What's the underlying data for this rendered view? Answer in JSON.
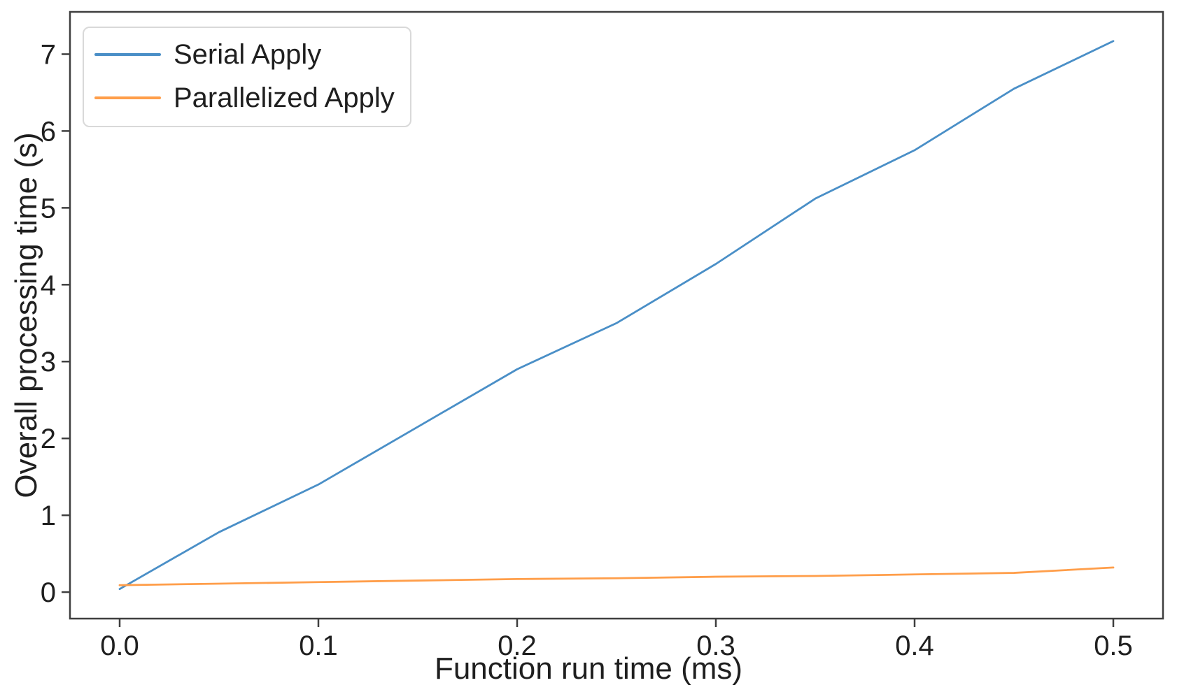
{
  "figure": {
    "background": "#ffffff",
    "spine_color": "#3f3f3f",
    "text_color": "#1f1f1f"
  },
  "chart_data": {
    "type": "line",
    "title": "",
    "xlabel": "Function run time (ms)",
    "ylabel": "Overall processing time (s)",
    "x": [
      0.0,
      0.05,
      0.1,
      0.15,
      0.2,
      0.25,
      0.3,
      0.35,
      0.4,
      0.45,
      0.5
    ],
    "series": [
      {
        "name": "Serial Apply",
        "color": "#4a8fc7",
        "values": [
          0.04,
          0.78,
          1.4,
          2.15,
          2.9,
          3.5,
          4.27,
          5.12,
          5.75,
          6.55,
          7.17
        ]
      },
      {
        "name": "Parallelized Apply",
        "color": "#ff9e4a",
        "values": [
          0.09,
          0.11,
          0.13,
          0.15,
          0.17,
          0.18,
          0.2,
          0.21,
          0.23,
          0.25,
          0.32
        ]
      }
    ],
    "xticks": [
      0.0,
      0.1,
      0.2,
      0.3,
      0.4,
      0.5
    ],
    "xtick_labels": [
      "0.0",
      "0.1",
      "0.2",
      "0.3",
      "0.4",
      "0.5"
    ],
    "yticks": [
      0,
      1,
      2,
      3,
      4,
      5,
      6,
      7
    ],
    "ytick_labels": [
      "0",
      "1",
      "2",
      "3",
      "4",
      "5",
      "6",
      "7"
    ],
    "xlim": [
      -0.025,
      0.525
    ],
    "ylim": [
      -0.345,
      7.55
    ],
    "grid": false,
    "legend_position": "upper left"
  }
}
